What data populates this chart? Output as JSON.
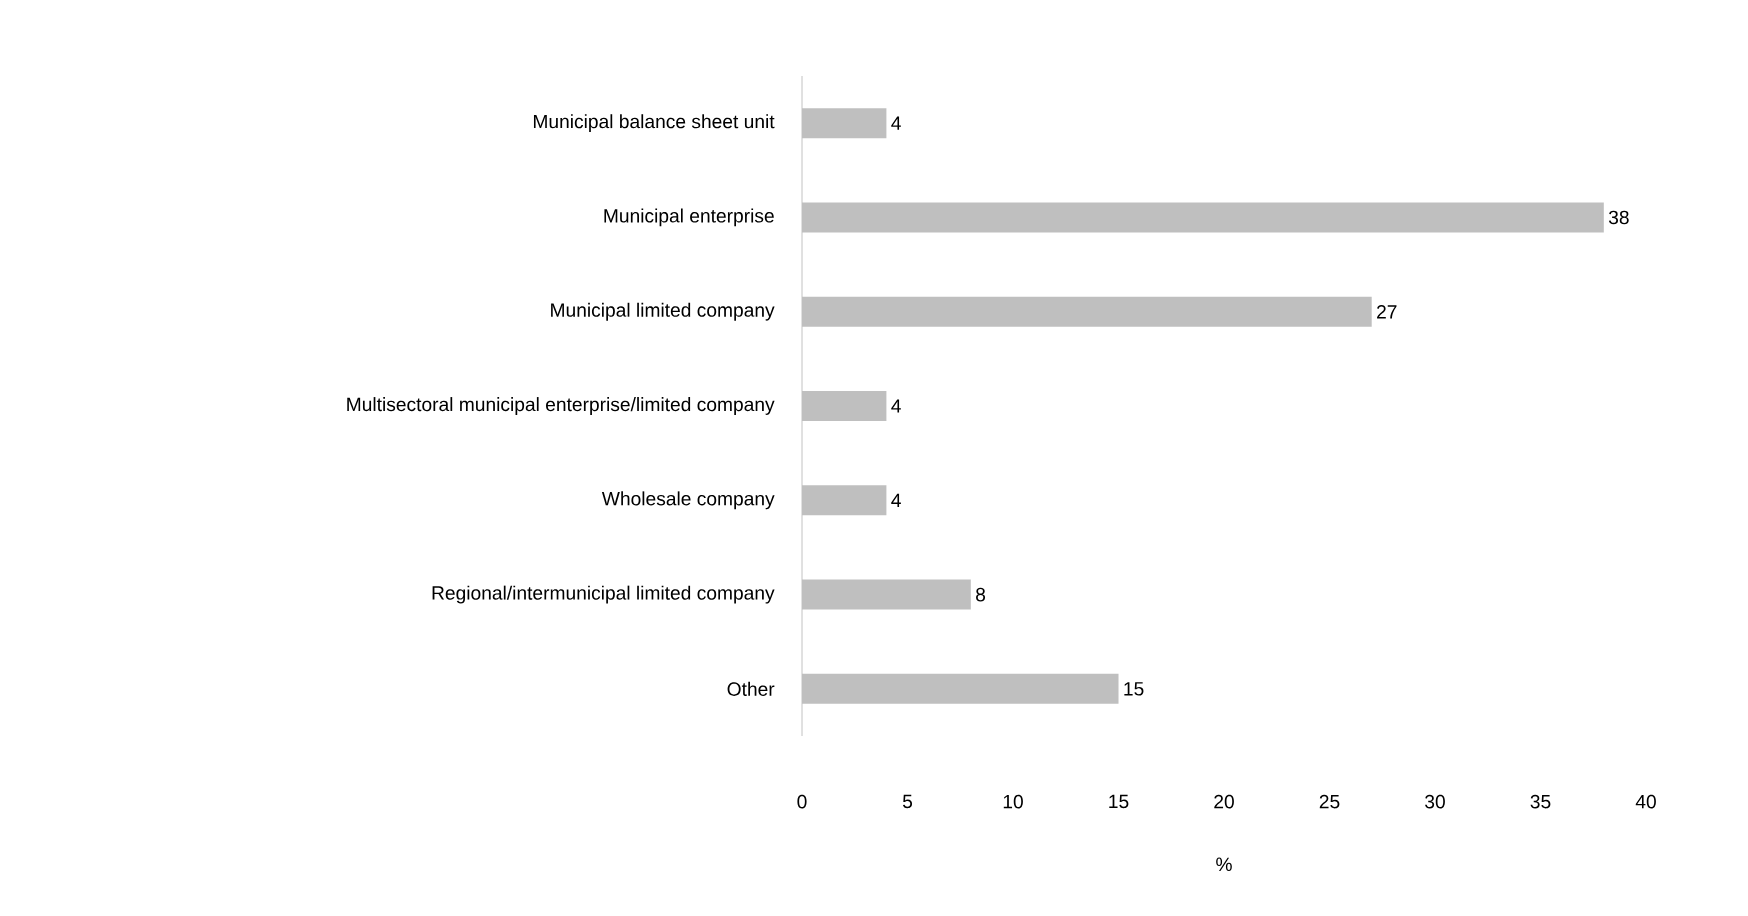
{
  "chart_data": {
    "type": "bar",
    "orientation": "horizontal",
    "xlabel": "%",
    "categories": [
      "Municipal balance sheet unit",
      "Municipal enterprise",
      "Municipal limited company",
      "Multisectoral municipal enterprise/limited company",
      "Wholesale company",
      "Regional/intermunicipal limited company",
      "Other"
    ],
    "values": [
      4,
      38,
      27,
      4,
      4,
      8,
      15
    ],
    "color": "#bfbfbf",
    "xlim": [
      0,
      40
    ],
    "xticks": [
      0,
      5,
      10,
      15,
      20,
      25,
      30,
      35,
      40
    ],
    "data_labels": true
  }
}
